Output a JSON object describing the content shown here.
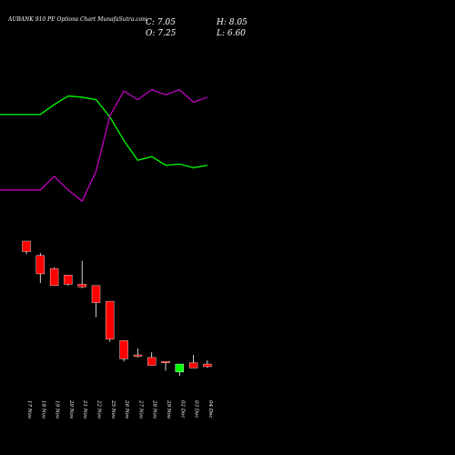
{
  "header": {
    "title": "AUBANK 910 PE Options  Chart MunafaSutra.com",
    "close": "C: 7.05",
    "high": "H: 8.05",
    "open": "O: 7.25",
    "low": "L: 6.60"
  },
  "chart_data": {
    "type": "candlestick",
    "categories": [
      "17 Nov",
      "18 Nov",
      "19 Nov",
      "20 Nov",
      "21 Nov",
      "22 Nov",
      "25 Nov",
      "26 Nov",
      "27 Nov",
      "28 Nov",
      "29 Nov",
      "02 Dec",
      "03 Dec",
      "04 Dec"
    ],
    "candles": [
      {
        "open": 48.0,
        "high": 48.0,
        "low": 43.0,
        "close": 44.0
      },
      {
        "open": 42.5,
        "high": 43.5,
        "low": 32.0,
        "close": 35.5
      },
      {
        "open": 37.5,
        "high": 38.0,
        "low": 31.0,
        "close": 31.0
      },
      {
        "open": 35.0,
        "high": 35.0,
        "low": 31.0,
        "close": 31.5
      },
      {
        "open": 31.5,
        "high": 40.5,
        "low": 30.0,
        "close": 30.5
      },
      {
        "open": 31.0,
        "high": 31.0,
        "low": 19.0,
        "close": 24.5
      },
      {
        "open": 25.0,
        "high": 25.0,
        "low": 9.5,
        "close": 10.5
      },
      {
        "open": 10.0,
        "high": 10.0,
        "low": 2.0,
        "close": 3.0
      },
      {
        "open": 4.5,
        "high": 7.0,
        "low": 3.5,
        "close": 4.0
      },
      {
        "open": 3.5,
        "high": 5.5,
        "low": 0.5,
        "close": 0.5
      },
      {
        "open": 2.0,
        "high": 2.0,
        "low": -1.5,
        "close": 1.5
      },
      {
        "open": -2.0,
        "high": 1.0,
        "low": -3.5,
        "close": 1.0
      },
      {
        "open": 1.5,
        "high": 4.5,
        "low": -0.5,
        "close": -0.5
      },
      {
        "open": 1.0,
        "high": 2.5,
        "low": -0.5,
        "close": 0.0
      }
    ],
    "series": [
      {
        "color": "#00ff00",
        "values": [
          0.81,
          0.81,
          0.89,
          0.96,
          0.95,
          0.93,
          0.79,
          0.6,
          0.44,
          0.47,
          0.4,
          0.41,
          0.38,
          0.4
        ]
      },
      {
        "color": "#c000c0",
        "values": [
          0.2,
          0.2,
          0.31,
          0.2,
          0.11,
          0.35,
          0.8,
          1.0,
          0.93,
          1.01,
          0.97,
          1.01,
          0.91,
          0.95
        ]
      }
    ],
    "colors": {
      "bear": "#ff0000",
      "bull": "#00ff00",
      "wick": "#ffffff",
      "background": "#000000"
    },
    "grid": false,
    "legend": "none"
  }
}
